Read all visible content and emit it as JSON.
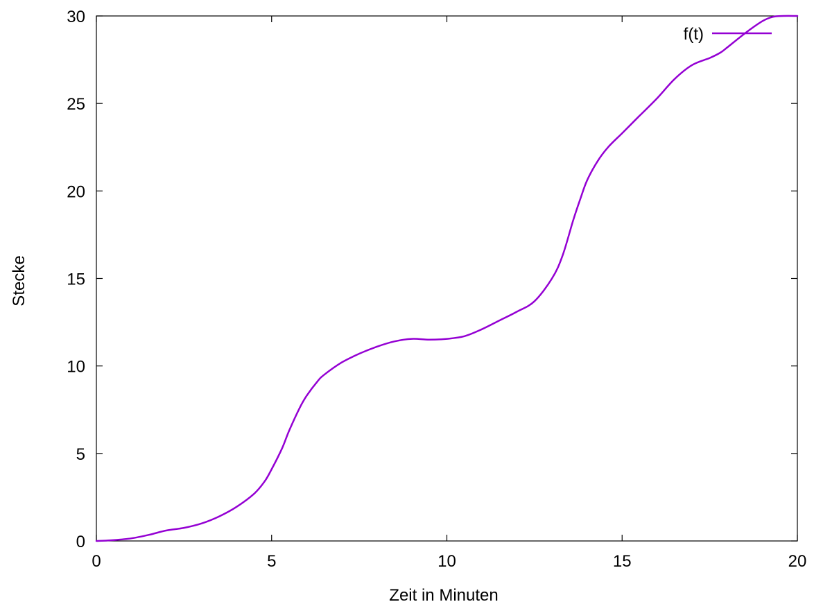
{
  "chart_data": {
    "type": "line",
    "title": "",
    "xlabel": "Zeit in Minuten",
    "ylabel": "Stecke",
    "xlim": [
      0,
      20
    ],
    "ylim": [
      0,
      30
    ],
    "xticks": [
      0,
      5,
      10,
      15,
      20
    ],
    "yticks": [
      0,
      5,
      10,
      15,
      20,
      25,
      30
    ],
    "grid": false,
    "legend_position": "top-right",
    "series": [
      {
        "name": "f(t)",
        "color": "#9400d3",
        "x": [
          0,
          0.5,
          1,
          1.5,
          2,
          2.5,
          3,
          3.5,
          4,
          4.5,
          4.8,
          5,
          5.3,
          5.5,
          5.8,
          6,
          6.3,
          6.5,
          7,
          7.5,
          8,
          8.5,
          9,
          9.5,
          10,
          10.5,
          11,
          11.5,
          12,
          12.5,
          13,
          13.3,
          13.6,
          13.8,
          14,
          14.3,
          14.6,
          15,
          15.5,
          16,
          16.5,
          17,
          17.5,
          17.8,
          18,
          18.5,
          19,
          19.3,
          19.6,
          20
        ],
        "y": [
          0,
          0.05,
          0.15,
          0.35,
          0.6,
          0.75,
          1.0,
          1.4,
          1.95,
          2.7,
          3.4,
          4.1,
          5.3,
          6.3,
          7.6,
          8.3,
          9.1,
          9.5,
          10.2,
          10.7,
          11.1,
          11.4,
          11.55,
          11.5,
          11.55,
          11.7,
          12.1,
          12.6,
          13.1,
          13.7,
          15.0,
          16.3,
          18.3,
          19.5,
          20.6,
          21.7,
          22.5,
          23.3,
          24.3,
          25.3,
          26.4,
          27.2,
          27.6,
          27.9,
          28.2,
          29.0,
          29.7,
          29.95,
          30.0,
          30.0
        ]
      }
    ]
  }
}
